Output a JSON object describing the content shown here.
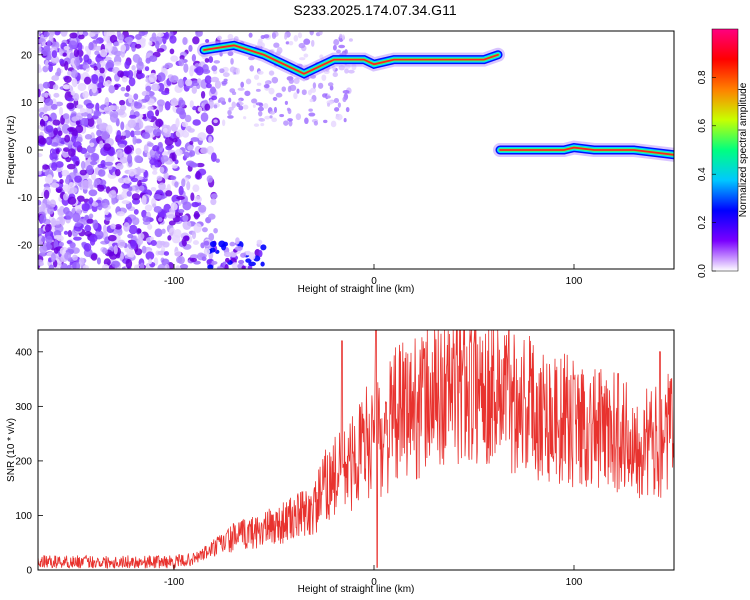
{
  "title": "S233.2025.174.07.34.G11",
  "chart_data": [
    {
      "type": "heatmap",
      "xlabel": "Height of straight line (km)",
      "ylabel": "Frequency (Hz)",
      "xlim": [
        -168,
        150
      ],
      "ylim": [
        -25,
        25
      ],
      "xticks": [
        -100,
        0,
        100
      ],
      "yticks": [
        -20,
        -10,
        0,
        10,
        20
      ],
      "colorbar": {
        "label": "Normalized spectral amplitude",
        "range": [
          0,
          1
        ],
        "ticks": [
          "0.0",
          "0.2",
          "0.4",
          "0.6",
          "0.8"
        ],
        "colors": [
          "#ffffff",
          "#7a00ff",
          "#0000ff",
          "#00c8ff",
          "#00ff80",
          "#c8ff00",
          "#ff8000",
          "#ff0000",
          "#ff0080"
        ]
      },
      "ridges": [
        {
          "x": [
            -85,
            -70,
            -55,
            -45,
            -35,
            -30,
            -20,
            -10,
            -5,
            0,
            10,
            20,
            40,
            55,
            62
          ],
          "y": [
            21,
            22,
            20,
            18,
            16,
            17,
            19,
            19,
            19,
            18,
            19,
            19,
            19,
            19,
            20
          ]
        },
        {
          "x": [
            63,
            80,
            95,
            100,
            110,
            130,
            150
          ],
          "y": [
            0,
            0,
            0,
            0.5,
            0,
            0,
            -1
          ]
        }
      ]
    },
    {
      "type": "line",
      "xlabel": "Height of straight line (km)",
      "ylabel": "SNR (10 * v/v)",
      "xlim": [
        -168,
        150
      ],
      "ylim": [
        0,
        440
      ],
      "xticks": [
        -100,
        0,
        100
      ],
      "yticks": [
        0,
        100,
        200,
        300,
        400
      ],
      "color": "#e8322e",
      "x": [
        -168,
        -150,
        -130,
        -110,
        -100,
        -90,
        -80,
        -70,
        -60,
        -50,
        -40,
        -30,
        -25,
        -20,
        -15,
        -10,
        -5,
        0,
        5,
        10,
        20,
        30,
        40,
        50,
        60,
        70,
        80,
        90,
        100,
        110,
        120,
        130,
        140,
        150
      ],
      "y": [
        15,
        15,
        15,
        15,
        15,
        20,
        40,
        60,
        70,
        80,
        95,
        110,
        150,
        170,
        180,
        200,
        230,
        250,
        240,
        280,
        300,
        320,
        335,
        345,
        340,
        320,
        300,
        280,
        270,
        260,
        250,
        240,
        230,
        260
      ],
      "spikes": [
        {
          "x": -16,
          "y": 420
        },
        {
          "x": 1,
          "y": 440
        },
        {
          "x": 100,
          "y": 350
        },
        {
          "x": 122,
          "y": 360
        },
        {
          "x": 143,
          "y": 400
        }
      ]
    }
  ]
}
